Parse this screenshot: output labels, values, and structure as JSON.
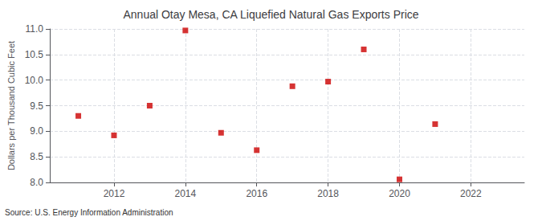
{
  "chart_data": {
    "type": "scatter",
    "title": "Annual Otay Mesa, CA Liquefied Natural Gas Exports Price",
    "ylabel": "Dollars per Thousand Cubic Feet",
    "source": "Source: U.S. Energy Information Administration",
    "x": [
      2011,
      2012,
      2013,
      2014,
      2015,
      2016,
      2017,
      2018,
      2019,
      2020,
      2021
    ],
    "values": [
      9.3,
      8.92,
      9.5,
      10.97,
      8.97,
      8.63,
      9.88,
      9.97,
      10.6,
      8.06,
      9.14
    ],
    "color": "#cc0000",
    "marker": "square",
    "xlim": [
      2010.2,
      2023.5
    ],
    "xticks": [
      2012,
      2014,
      2016,
      2018,
      2020,
      2022
    ],
    "ylim": [
      8.0,
      11.0
    ],
    "yticks": [
      {
        "value": 8.0,
        "label": "8.0"
      },
      {
        "value": 8.5,
        "label": "8.5"
      },
      {
        "value": 9.0,
        "label": "9.0"
      },
      {
        "value": 9.5,
        "label": "9.5"
      },
      {
        "value": 10.0,
        "label": "10.0"
      },
      {
        "value": 10.5,
        "label": "10.5"
      },
      {
        "value": 11.0,
        "label": "11.0"
      }
    ],
    "grid": true
  }
}
